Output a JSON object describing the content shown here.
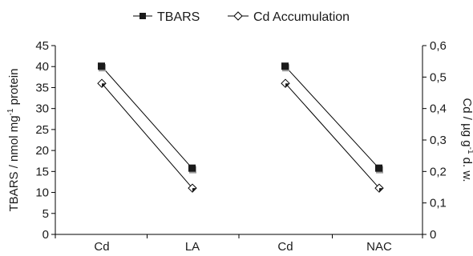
{
  "chart_data": {
    "type": "line",
    "categories": [
      "Cd",
      "LA",
      "Cd",
      "NAC"
    ],
    "groups": [
      [
        0,
        1
      ],
      [
        2,
        3
      ]
    ],
    "left_axis": {
      "label": "TBARS / nmol mg",
      "label_sup": "-1",
      "label_suffix": " protein",
      "min": 0,
      "max": 45,
      "step": 5,
      "ticks": [
        "0",
        "5",
        "10",
        "15",
        "20",
        "25",
        "30",
        "35",
        "40",
        "45"
      ]
    },
    "right_axis": {
      "label_prefix": "Cd / µg g",
      "label_sup": "-1",
      "label_suffix": " d. w.",
      "min": 0,
      "max": 0.6,
      "step": 0.1,
      "ticks": [
        "0",
        "0,1",
        "0,2",
        "0,3",
        "0,4",
        "0,5",
        "0,6"
      ]
    },
    "series": [
      {
        "name": "TBARS",
        "axis": "left",
        "marker": "square-filled",
        "values": [
          40,
          15.7,
          40,
          15.7
        ]
      },
      {
        "name": "Cd Accumulation",
        "axis": "right",
        "marker": "diamond-open",
        "values": [
          0.48,
          0.147,
          0.48,
          0.147
        ]
      }
    ],
    "legend_position": "top",
    "grid": false
  }
}
